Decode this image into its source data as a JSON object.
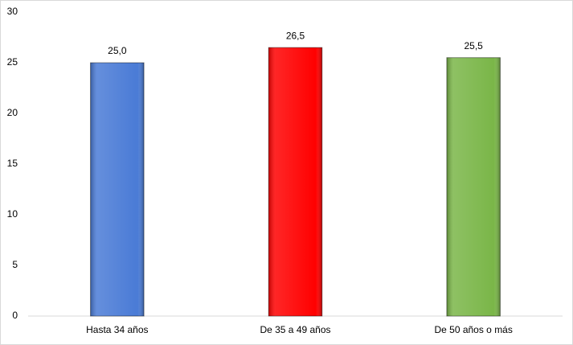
{
  "chart_data": {
    "type": "bar",
    "categories": [
      "Hasta 34 años",
      "De 35 a 49 años",
      "De 50 años o más"
    ],
    "values": [
      25.0,
      26.5,
      25.5
    ],
    "value_labels": [
      "25,0",
      "26,5",
      "25,5"
    ],
    "colors": [
      "#4a7bd6",
      "#ff0000",
      "#7ab648"
    ],
    "ylim": [
      0,
      30
    ],
    "yticks": [
      0,
      5,
      10,
      15,
      20,
      25,
      30
    ],
    "grid": false
  }
}
